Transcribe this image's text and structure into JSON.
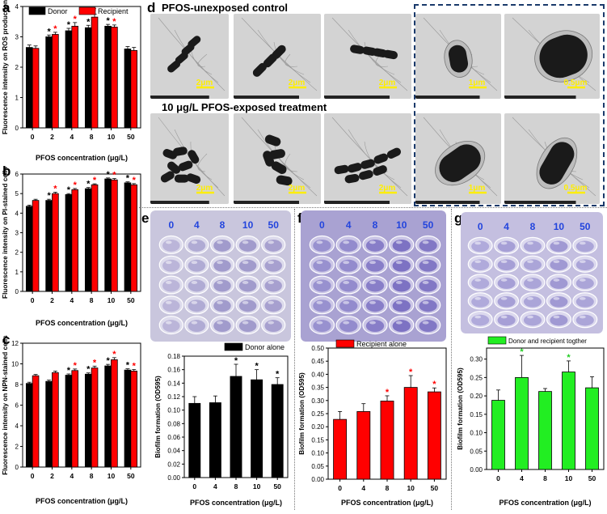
{
  "panel_labels": {
    "a": "a",
    "b": "b",
    "c": "c",
    "d": "d",
    "e": "e",
    "f": "f",
    "g": "g"
  },
  "colors": {
    "donor": "#000000",
    "recipient": "#ff0000",
    "together": "#22ee22",
    "star_red": "#ff0000",
    "star_green": "#22cc22",
    "scale_bar": "#ffee00",
    "dash_box": "#1a3a6b",
    "well_text": "#2244dd"
  },
  "panel_d": {
    "row1_title": "PFOS-unexposed control",
    "row2_title": "10 μg/L PFOS-exposed treatment",
    "row1_scales": [
      "2μm",
      "2μm",
      "2μm",
      "1μm",
      "0.5μm"
    ],
    "row2_scales": [
      "2μm",
      "2μm",
      "2μm",
      "1μm",
      "0.5μm"
    ]
  },
  "panel_e_plate_labels": [
    "0",
    "4",
    "8",
    "10",
    "50"
  ],
  "panel_f_plate_labels": [
    "0",
    "4",
    "8",
    "10",
    "50"
  ],
  "panel_g_plate_labels": [
    "0",
    "4",
    "8",
    "10",
    "50"
  ],
  "chart_data": [
    {
      "id": "a",
      "type": "bar",
      "xlabel": "PFOS concentration (μg/L)",
      "ylabel": "Fluorescence intensity on ROS production",
      "categories": [
        "0",
        "2",
        "4",
        "8",
        "10",
        "50"
      ],
      "ylim": [
        0,
        4
      ],
      "yticks": [
        "0",
        "1",
        "2",
        "3",
        "4"
      ],
      "legend": "top-left",
      "series": [
        {
          "name": "Donor",
          "values": [
            2.65,
            3.0,
            3.2,
            3.3,
            3.35,
            2.6
          ],
          "err": [
            0.08,
            0.06,
            0.08,
            0.08,
            0.06,
            0.08
          ],
          "stars": [
            false,
            true,
            true,
            true,
            true,
            false
          ]
        },
        {
          "name": "Recipient",
          "values": [
            2.62,
            3.08,
            3.35,
            3.65,
            3.32,
            2.55
          ],
          "err": [
            0.08,
            0.07,
            0.12,
            0.1,
            0.07,
            0.1
          ],
          "stars": [
            false,
            true,
            true,
            true,
            true,
            false
          ]
        }
      ]
    },
    {
      "id": "b",
      "type": "bar",
      "xlabel": "PFOS concentration (μg/L)",
      "ylabel": "Fluorescence intensity on PI-stained  cells",
      "categories": [
        "0",
        "2",
        "4",
        "8",
        "10",
        "50"
      ],
      "ylim": [
        0,
        6
      ],
      "yticks": [
        "0",
        "1",
        "2",
        "3",
        "4",
        "5",
        "6"
      ],
      "series": [
        {
          "name": "Donor",
          "values": [
            4.35,
            4.65,
            4.95,
            5.25,
            5.75,
            5.55
          ],
          "err": [
            0.06,
            0.06,
            0.05,
            0.06,
            0.05,
            0.05
          ],
          "stars": [
            false,
            true,
            true,
            true,
            true,
            true
          ]
        },
        {
          "name": "Recipient",
          "values": [
            4.65,
            5.0,
            5.2,
            5.45,
            5.7,
            5.45
          ],
          "err": [
            0.06,
            0.07,
            0.06,
            0.05,
            0.07,
            0.06
          ],
          "stars": [
            false,
            true,
            true,
            true,
            true,
            true
          ]
        }
      ]
    },
    {
      "id": "c",
      "type": "bar",
      "xlabel": "PFOS concentration (μg/L)",
      "ylabel": "Fluorescence intensity on NPN-stained  cells",
      "categories": [
        "0",
        "2",
        "4",
        "8",
        "10",
        "50"
      ],
      "ylim": [
        0,
        12
      ],
      "yticks": [
        "0",
        "2",
        "4",
        "6",
        "8",
        "10",
        "12"
      ],
      "series": [
        {
          "name": "Donor",
          "values": [
            8.1,
            8.3,
            8.9,
            9.0,
            9.8,
            9.4
          ],
          "err": [
            0.12,
            0.12,
            0.12,
            0.12,
            0.15,
            0.12
          ],
          "stars": [
            false,
            false,
            true,
            true,
            true,
            true
          ]
        },
        {
          "name": "Recipient",
          "values": [
            8.85,
            9.15,
            9.35,
            9.6,
            10.4,
            9.3
          ],
          "err": [
            0.12,
            0.15,
            0.15,
            0.18,
            0.2,
            0.15
          ],
          "stars": [
            false,
            false,
            true,
            true,
            true,
            true
          ]
        }
      ]
    },
    {
      "id": "e",
      "type": "bar",
      "xlabel": "PFOS concentration (μg/L)",
      "ylabel": "Biofilm  formation (OD595)",
      "categories": [
        "0",
        "4",
        "8",
        "10",
        "50"
      ],
      "ylim": [
        0,
        0.18
      ],
      "yticks": [
        "0.00",
        "0.02",
        "0.04",
        "0.06",
        "0.08",
        "0.10",
        "0.12",
        "0.14",
        "0.16",
        "0.18"
      ],
      "legend": "top-right",
      "series": [
        {
          "name": "Donor  alone",
          "values": [
            0.11,
            0.111,
            0.15,
            0.145,
            0.138
          ],
          "err": [
            0.01,
            0.01,
            0.018,
            0.015,
            0.01
          ],
          "stars": [
            false,
            false,
            true,
            true,
            true
          ]
        }
      ]
    },
    {
      "id": "f",
      "type": "bar",
      "xlabel": "PFOS concentration (μg/L)",
      "ylabel": "Biofilm formation (OD595)",
      "categories": [
        "0",
        "4",
        "8",
        "10",
        "50"
      ],
      "ylim": [
        0,
        0.5
      ],
      "yticks": [
        "0.00",
        "0.05",
        "0.10",
        "0.15",
        "0.20",
        "0.25",
        "0.30",
        "0.35",
        "0.40",
        "0.45",
        "0.50"
      ],
      "legend": "top-right",
      "series": [
        {
          "name": "Recipient alone",
          "values": [
            0.228,
            0.258,
            0.298,
            0.35,
            0.333
          ],
          "err": [
            0.03,
            0.03,
            0.02,
            0.045,
            0.015
          ],
          "stars": [
            false,
            false,
            true,
            true,
            true
          ]
        }
      ]
    },
    {
      "id": "g",
      "type": "bar",
      "xlabel": "PFOS concentration (μg/L)",
      "ylabel": "Biofilm  formation (OD595)",
      "categories": [
        "0",
        "4",
        "8",
        "10",
        "50"
      ],
      "ylim": [
        0,
        0.33
      ],
      "yticks": [
        "0.00",
        "0.05",
        "0.10",
        "0.15",
        "0.20",
        "0.25",
        "0.30"
      ],
      "legend": "top-right",
      "series": [
        {
          "name": "Donor and recipient togther",
          "values": [
            0.188,
            0.25,
            0.212,
            0.265,
            0.222
          ],
          "err": [
            0.028,
            0.06,
            0.008,
            0.03,
            0.03
          ],
          "stars": [
            false,
            true,
            false,
            true,
            false
          ]
        }
      ]
    }
  ]
}
